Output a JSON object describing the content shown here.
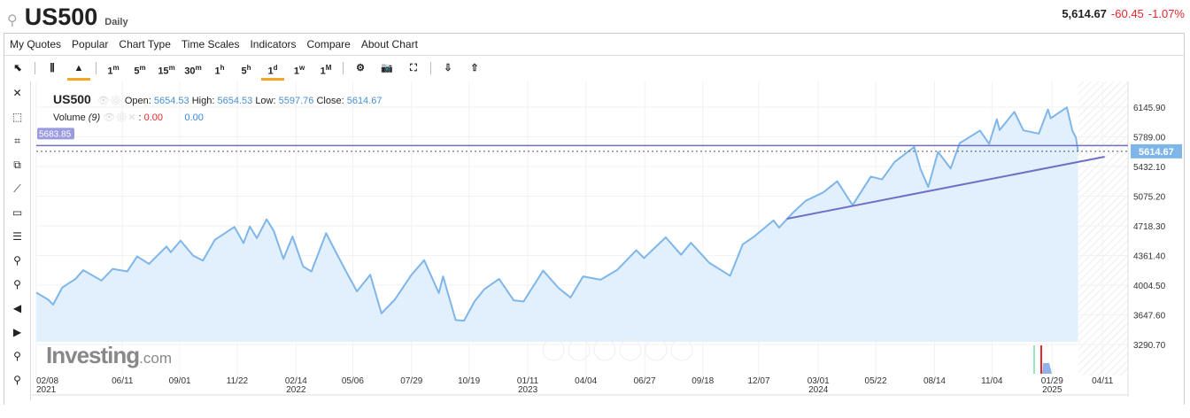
{
  "header": {
    "symbol": "US500",
    "period": "Daily",
    "last": "5,614.67",
    "change": "-60.45",
    "change_pct": "-1.07%",
    "search_icon": "search-icon"
  },
  "menu": [
    "My Quotes",
    "Popular",
    "Chart Type",
    "Time Scales",
    "Indicators",
    "Compare",
    "About Chart"
  ],
  "toolbar": {
    "timescales": [
      [
        "1",
        "m"
      ],
      [
        "5",
        "m"
      ],
      [
        "15",
        "m"
      ],
      [
        "30",
        "m"
      ],
      [
        "1",
        "h"
      ],
      [
        "5",
        "h"
      ],
      [
        "1",
        "d"
      ],
      [
        "1",
        "w"
      ],
      [
        "1",
        "M"
      ]
    ],
    "active_timescale": "1d",
    "active_chart_type": "area"
  },
  "legend": {
    "symbol": "US500",
    "open_label": "Open:",
    "open": "5654.53",
    "high_label": "High:",
    "high": "5654.53",
    "low_label": "Low:",
    "low": "5597.76",
    "close_label": "Close:",
    "close": "5614.67",
    "volume_label": "Volume",
    "volume_param": "(9)",
    "vol_a": "0.00",
    "vol_b": "0.00"
  },
  "colors": {
    "line": "#7fb6ea",
    "fill": "#e1f0fc",
    "trend": "#6f6fc8",
    "down": "#e8262b",
    "price_tag": "#7fb6ea"
  },
  "chart_data": {
    "type": "area",
    "ylim": [
      3290.7,
      6145.9
    ],
    "yticks": [
      "6145.90",
      "5789.00",
      "5432.10",
      "5075.20",
      "4718.30",
      "4361.40",
      "4004.50",
      "3647.60",
      "3290.70"
    ],
    "xticks": [
      [
        "02/08",
        "2021",
        "2021-02-08"
      ],
      [
        "06/11",
        "",
        "2021-06-11"
      ],
      [
        "09/01",
        "",
        "2021-09-01"
      ],
      [
        "11/22",
        "",
        "2021-11-22"
      ],
      [
        "02/14",
        "2022",
        "2022-02-14"
      ],
      [
        "05/06",
        "",
        "2022-05-06"
      ],
      [
        "07/29",
        "",
        "2022-07-29"
      ],
      [
        "10/19",
        "",
        "2022-10-19"
      ],
      [
        "01/11",
        "2023",
        "2023-01-11"
      ],
      [
        "04/04",
        "",
        "2023-04-04"
      ],
      [
        "06/27",
        "",
        "2023-06-27"
      ],
      [
        "09/18",
        "",
        "2023-09-18"
      ],
      [
        "12/07",
        "",
        "2023-12-07"
      ],
      [
        "03/01",
        "2024",
        "2024-03-01"
      ],
      [
        "05/22",
        "",
        "2024-05-22"
      ],
      [
        "08/14",
        "",
        "2024-08-14"
      ],
      [
        "11/04",
        "",
        "2024-11-04"
      ],
      [
        "01/29",
        "2025",
        "2025-01-29"
      ],
      [
        "04/11",
        "",
        "2025-04-11"
      ]
    ],
    "series": [
      [
        "2021-02-08",
        3915
      ],
      [
        "2021-02-25",
        3830
      ],
      [
        "2021-03-04",
        3770
      ],
      [
        "2021-03-17",
        3975
      ],
      [
        "2021-04-05",
        4080
      ],
      [
        "2021-04-16",
        4185
      ],
      [
        "2021-05-12",
        4060
      ],
      [
        "2021-05-28",
        4200
      ],
      [
        "2021-06-18",
        4170
      ],
      [
        "2021-07-02",
        4350
      ],
      [
        "2021-07-19",
        4260
      ],
      [
        "2021-08-13",
        4470
      ],
      [
        "2021-08-19",
        4400
      ],
      [
        "2021-09-02",
        4540
      ],
      [
        "2021-09-20",
        4360
      ],
      [
        "2021-10-04",
        4300
      ],
      [
        "2021-10-21",
        4550
      ],
      [
        "2021-11-18",
        4705
      ],
      [
        "2021-12-01",
        4510
      ],
      [
        "2021-12-10",
        4710
      ],
      [
        "2021-12-20",
        4570
      ],
      [
        "2022-01-03",
        4796
      ],
      [
        "2022-01-13",
        4660
      ],
      [
        "2022-01-27",
        4320
      ],
      [
        "2022-02-09",
        4590
      ],
      [
        "2022-02-24",
        4230
      ],
      [
        "2022-03-08",
        4170
      ],
      [
        "2022-03-29",
        4630
      ],
      [
        "2022-04-12",
        4400
      ],
      [
        "2022-04-29",
        4130
      ],
      [
        "2022-05-12",
        3930
      ],
      [
        "2022-05-31",
        4130
      ],
      [
        "2022-06-16",
        3665
      ],
      [
        "2022-07-05",
        3830
      ],
      [
        "2022-07-29",
        4130
      ],
      [
        "2022-08-16",
        4305
      ],
      [
        "2022-09-06",
        3910
      ],
      [
        "2022-09-12",
        4110
      ],
      [
        "2022-09-30",
        3585
      ],
      [
        "2022-10-12",
        3577
      ],
      [
        "2022-10-27",
        3810
      ],
      [
        "2022-11-10",
        3956
      ],
      [
        "2022-12-01",
        4080
      ],
      [
        "2022-12-22",
        3822
      ],
      [
        "2023-01-05",
        3808
      ],
      [
        "2023-02-02",
        4180
      ],
      [
        "2023-02-24",
        3970
      ],
      [
        "2023-03-13",
        3855
      ],
      [
        "2023-03-31",
        4110
      ],
      [
        "2023-04-25",
        4070
      ],
      [
        "2023-05-19",
        4190
      ],
      [
        "2023-06-15",
        4425
      ],
      [
        "2023-06-26",
        4330
      ],
      [
        "2023-07-27",
        4580
      ],
      [
        "2023-08-18",
        4370
      ],
      [
        "2023-09-01",
        4515
      ],
      [
        "2023-09-27",
        4275
      ],
      [
        "2023-10-27",
        4117
      ],
      [
        "2023-11-14",
        4495
      ],
      [
        "2023-12-01",
        4594
      ],
      [
        "2023-12-28",
        4783
      ],
      [
        "2024-01-05",
        4697
      ],
      [
        "2024-01-24",
        4870
      ],
      [
        "2024-02-12",
        5020
      ],
      [
        "2024-03-08",
        5120
      ],
      [
        "2024-03-28",
        5254
      ],
      [
        "2024-04-19",
        4967
      ],
      [
        "2024-05-15",
        5310
      ],
      [
        "2024-05-31",
        5277
      ],
      [
        "2024-06-18",
        5487
      ],
      [
        "2024-07-16",
        5667
      ],
      [
        "2024-07-25",
        5400
      ],
      [
        "2024-08-05",
        5186
      ],
      [
        "2024-08-19",
        5608
      ],
      [
        "2024-09-06",
        5408
      ],
      [
        "2024-09-19",
        5713
      ],
      [
        "2024-10-18",
        5864
      ],
      [
        "2024-10-31",
        5705
      ],
      [
        "2024-11-11",
        6001
      ],
      [
        "2024-11-15",
        5870
      ],
      [
        "2024-12-06",
        6090
      ],
      [
        "2024-12-19",
        5867
      ],
      [
        "2025-01-10",
        5827
      ],
      [
        "2025-01-23",
        6118
      ],
      [
        "2025-01-27",
        6012
      ],
      [
        "2025-02-19",
        6144
      ],
      [
        "2025-02-27",
        5861
      ],
      [
        "2025-03-04",
        5778
      ],
      [
        "2025-03-07",
        5614.67
      ]
    ],
    "horizontal_line": 5683.85,
    "current_price": 5614.67,
    "trendline": [
      [
        "2024-01-16",
        4803
      ],
      [
        "2025-04-14",
        5549
      ]
    ]
  }
}
